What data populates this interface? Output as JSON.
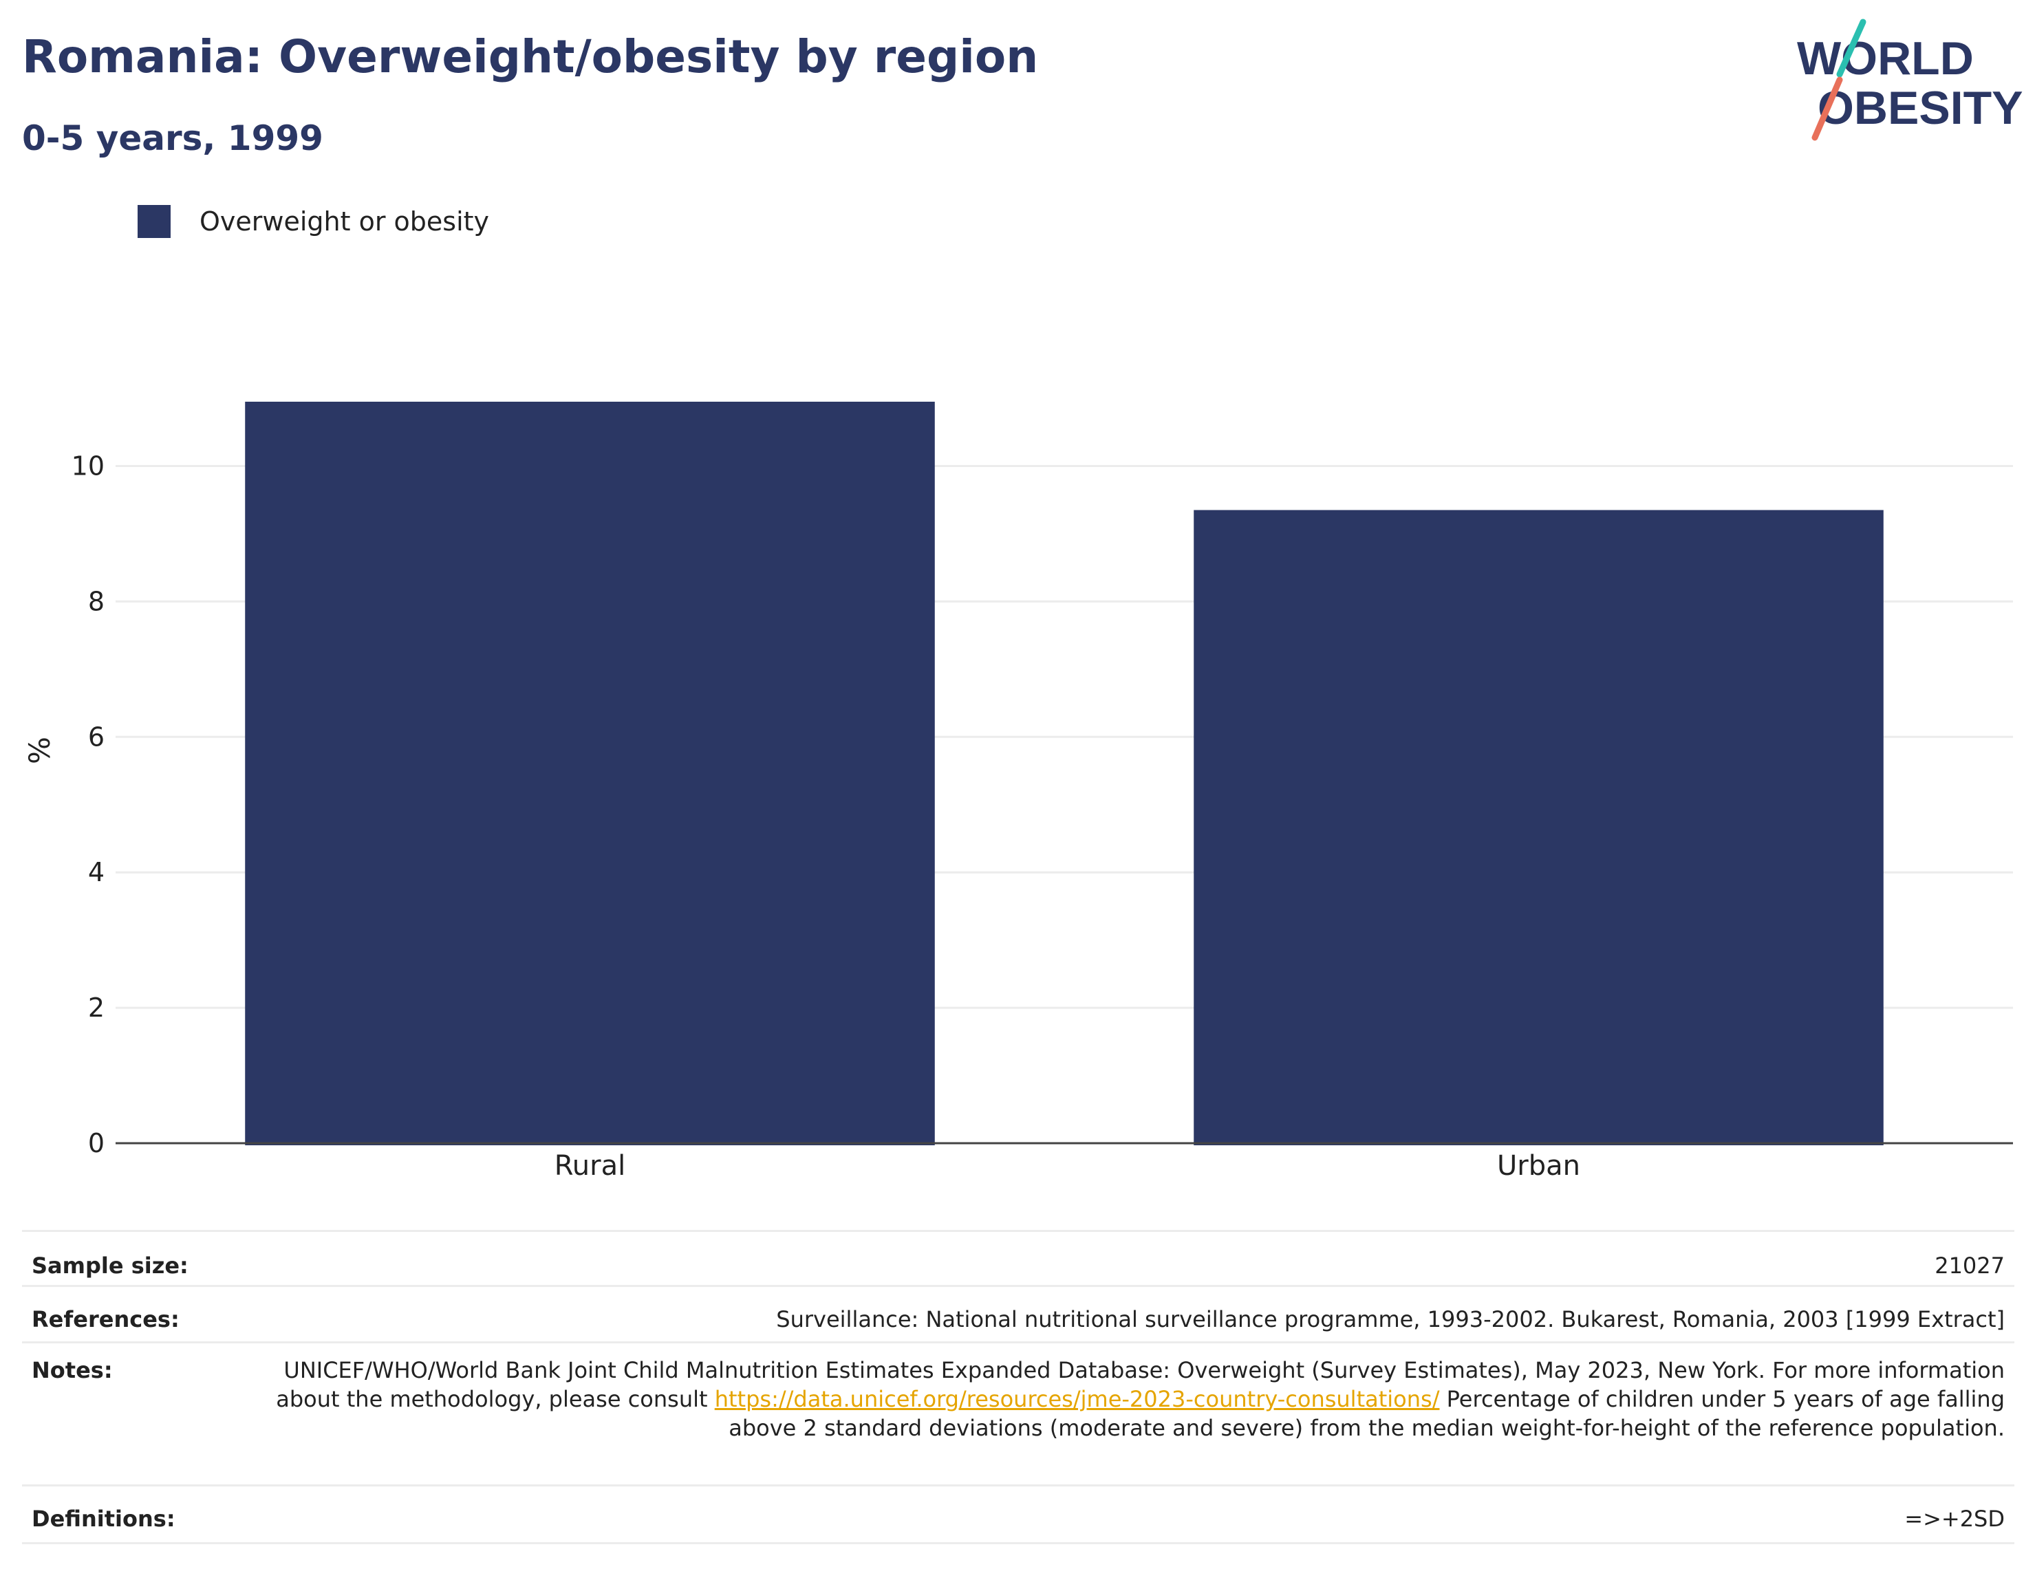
{
  "header": {
    "title": "Romania: Overweight/obesity by region",
    "subtitle": "0-5 years, 1999"
  },
  "logo": {
    "line1": "WORLD",
    "line2": "OBESITY",
    "colors": {
      "text": "#2b3764",
      "slash_top": "#2bbfb0",
      "slash_bottom": "#e8705a"
    }
  },
  "legend": {
    "label": "Overweight or obesity",
    "color": "#2b3764"
  },
  "chart_data": {
    "type": "bar",
    "categories": [
      "Rural",
      "Urban"
    ],
    "series": [
      {
        "name": "Overweight or obesity",
        "values": [
          10.95,
          9.35
        ],
        "color": "#2b3764"
      }
    ],
    "title": "Romania: Overweight/obesity by region",
    "subtitle": "0-5 years, 1999",
    "xlabel": "",
    "ylabel": "%",
    "ylim": [
      0,
      11.6
    ],
    "yticks": [
      0,
      2,
      4,
      6,
      8,
      10
    ],
    "grid": true,
    "legend_position": "top-left"
  },
  "info": {
    "sample_size": {
      "label": "Sample size:",
      "value": "21027"
    },
    "references": {
      "label": "References:",
      "value": "Surveillance: National nutritional surveillance programme, 1993-2002. Bukarest, Romania, 2003 [1999 Extract]"
    },
    "notes": {
      "label": "Notes:",
      "text_before": "UNICEF/WHO/World Bank Joint Child Malnutrition Estimates Expanded Database: Overweight (Survey Estimates), May 2023, New York. For more information about the methodology, please consult ",
      "link": "https://data.unicef.org/resources/jme-2023-country-consultations/",
      "text_after": " Percentage of children under 5 years of age falling above 2 standard deviations (moderate and severe) from the median weight-for-height of the reference population."
    },
    "definitions": {
      "label": "Definitions:",
      "value": "=>+2SD"
    }
  }
}
